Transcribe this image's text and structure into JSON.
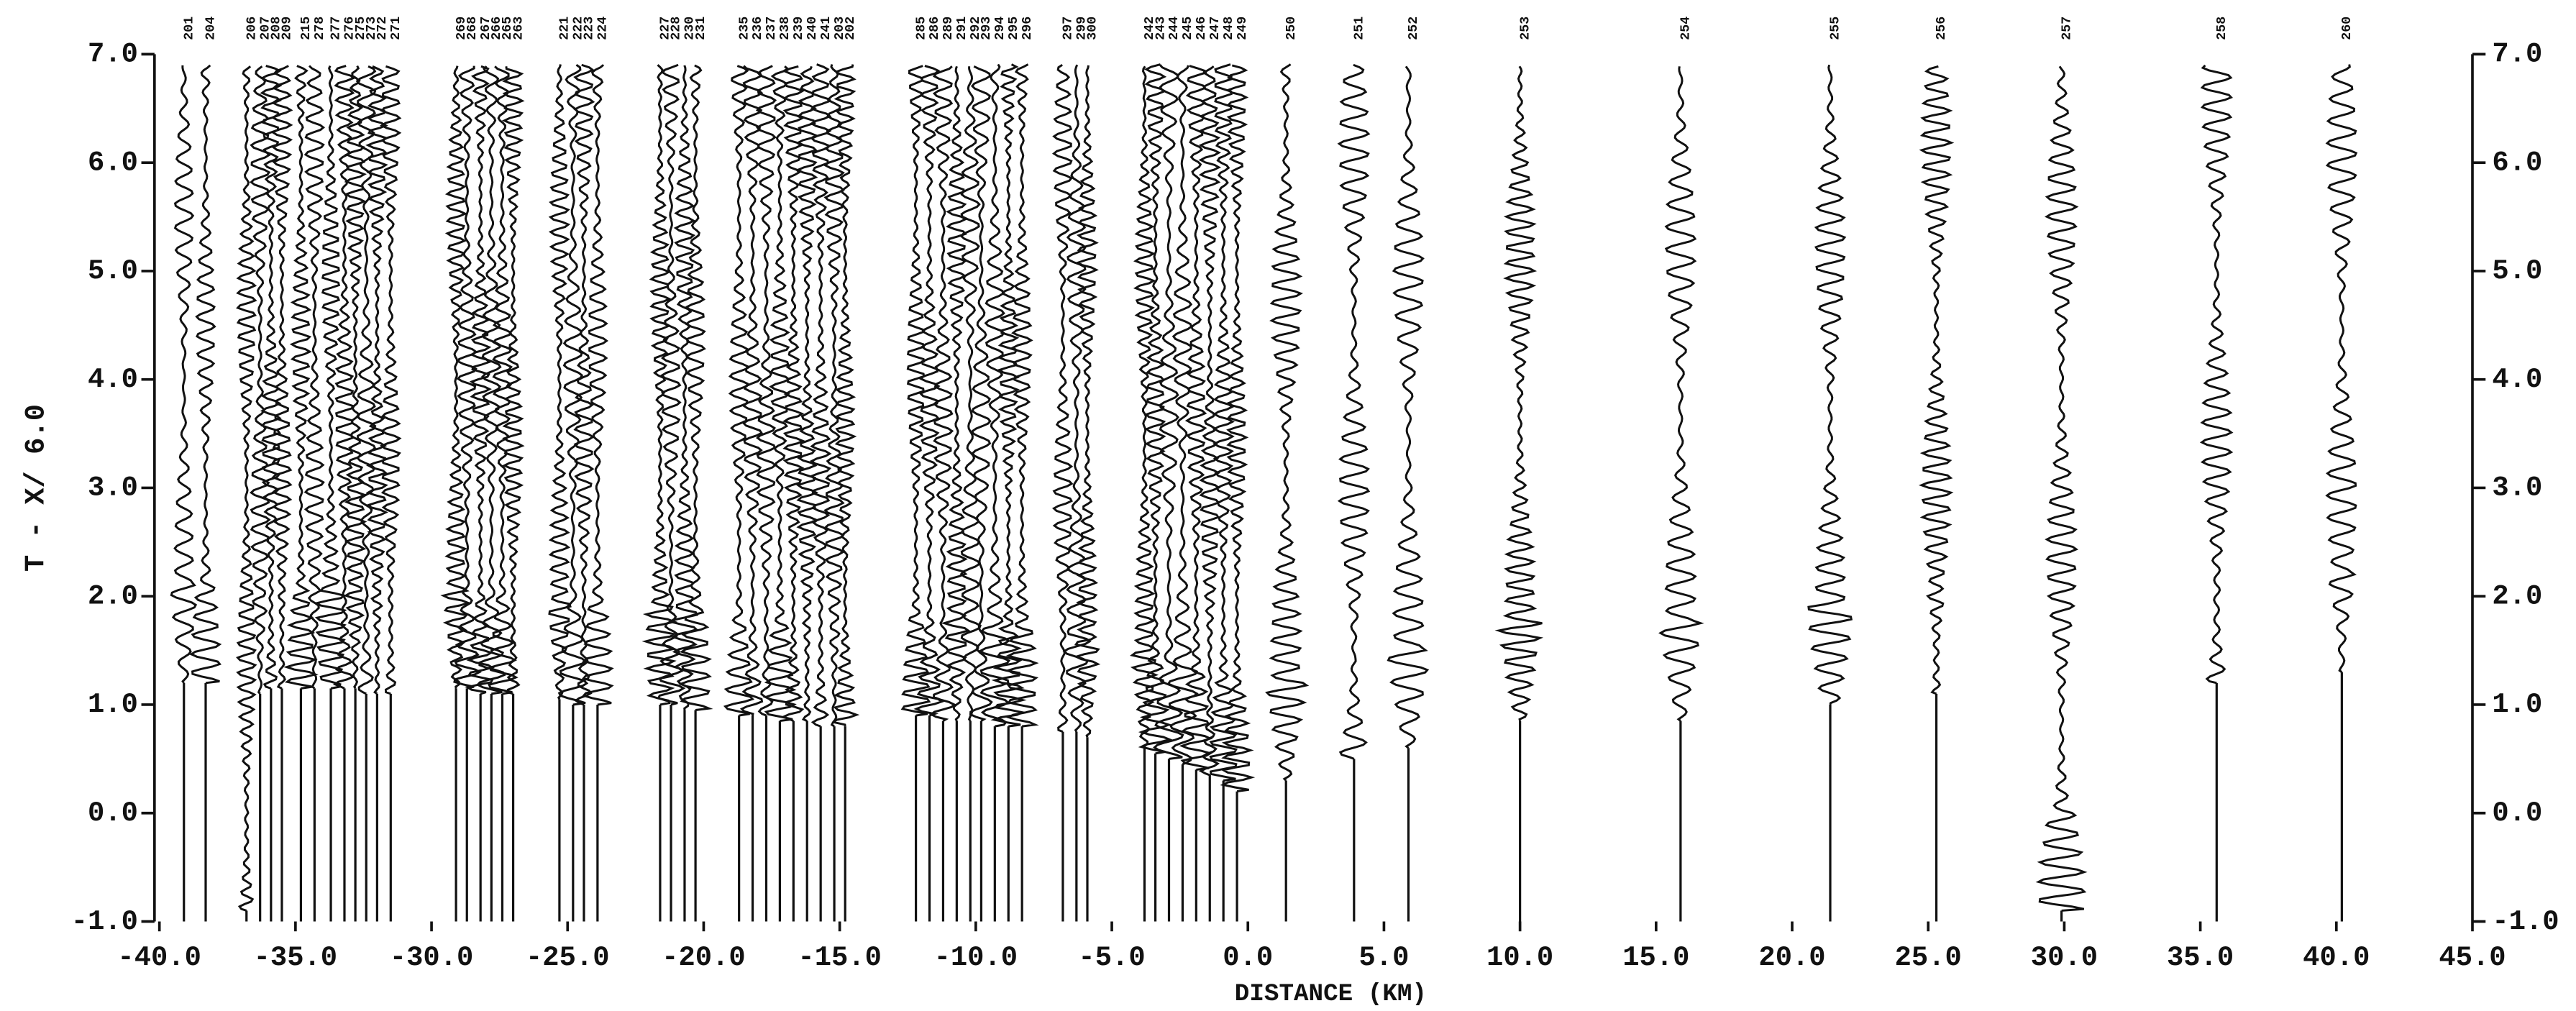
{
  "chart_data": {
    "type": "record-section",
    "xlabel": "DISTANCE (KM)",
    "ylabel": "T - X/ 6.0",
    "xlim": [
      -40,
      45
    ],
    "ylim": [
      -1,
      7
    ],
    "y2lim": [
      -1,
      7
    ],
    "xticks": [
      {
        "value": -40,
        "label": "-40.0"
      },
      {
        "value": -35,
        "label": "-35.0"
      },
      {
        "value": -30,
        "label": "-30.0"
      },
      {
        "value": -25,
        "label": "-25.0"
      },
      {
        "value": -20,
        "label": "-20.0"
      },
      {
        "value": -15,
        "label": "-15.0"
      },
      {
        "value": -10,
        "label": "-10.0"
      },
      {
        "value": -5,
        "label": "-5.0"
      },
      {
        "value": 0,
        "label": "0.0"
      },
      {
        "value": 5,
        "label": "5.0"
      },
      {
        "value": 10,
        "label": "10.0"
      },
      {
        "value": 15,
        "label": "15.0"
      },
      {
        "value": 20,
        "label": "20.0"
      },
      {
        "value": 25,
        "label": "25.0"
      },
      {
        "value": 30,
        "label": "30.0"
      },
      {
        "value": 35,
        "label": "35.0"
      },
      {
        "value": 40,
        "label": "40.0"
      },
      {
        "value": 45,
        "label": "45.0"
      }
    ],
    "yticks": [
      {
        "value": -1,
        "label": "-1.0"
      },
      {
        "value": 0,
        "label": "0.0"
      },
      {
        "value": 1,
        "label": "1.0"
      },
      {
        "value": 2,
        "label": "2.0"
      },
      {
        "value": 3,
        "label": "3.0"
      },
      {
        "value": 4,
        "label": "4.0"
      },
      {
        "value": 5,
        "label": "5.0"
      },
      {
        "value": 6,
        "label": "6.0"
      },
      {
        "value": 7,
        "label": "7.0"
      }
    ],
    "y2ticks": [
      {
        "value": -1,
        "label": "-1.0"
      },
      {
        "value": 0,
        "label": "0.0"
      },
      {
        "value": 1,
        "label": "1.0"
      },
      {
        "value": 2,
        "label": "2.0"
      },
      {
        "value": 3,
        "label": "3.0"
      },
      {
        "value": 4,
        "label": "4.0"
      },
      {
        "value": 5,
        "label": "5.0"
      },
      {
        "value": 6,
        "label": "6.0"
      },
      {
        "value": 7,
        "label": "7.0"
      }
    ],
    "traces": [
      {
        "name": "201",
        "x": -39.1,
        "onset": 1.2
      },
      {
        "name": "204",
        "x": -38.3,
        "onset": 1.2
      },
      {
        "name": "206",
        "x": -36.8,
        "onset": -0.9
      },
      {
        "name": "207",
        "x": -36.3,
        "onset": 1.1
      },
      {
        "name": "208",
        "x": -35.9,
        "onset": 1.15
      },
      {
        "name": "209",
        "x": -35.5,
        "onset": 1.15
      },
      {
        "name": "215",
        "x": -34.8,
        "onset": 1.15
      },
      {
        "name": "278",
        "x": -34.3,
        "onset": 1.15
      },
      {
        "name": "277",
        "x": -33.7,
        "onset": 1.15
      },
      {
        "name": "276",
        "x": -33.2,
        "onset": 1.15
      },
      {
        "name": "275",
        "x": -32.8,
        "onset": 1.15
      },
      {
        "name": "273",
        "x": -32.4,
        "onset": 1.1
      },
      {
        "name": "272",
        "x": -32.0,
        "onset": 1.1
      },
      {
        "name": "271",
        "x": -31.5,
        "onset": 1.1
      },
      {
        "name": "269",
        "x": -29.1,
        "onset": 1.15
      },
      {
        "name": "268",
        "x": -28.7,
        "onset": 1.15
      },
      {
        "name": "267",
        "x": -28.2,
        "onset": 1.1
      },
      {
        "name": "266",
        "x": -27.8,
        "onset": 1.1
      },
      {
        "name": "265",
        "x": -27.4,
        "onset": 1.1
      },
      {
        "name": "263",
        "x": -27.0,
        "onset": 1.1
      },
      {
        "name": "221",
        "x": -25.3,
        "onset": 1.05
      },
      {
        "name": "222",
        "x": -24.8,
        "onset": 1.0
      },
      {
        "name": "223",
        "x": -24.4,
        "onset": 1.0
      },
      {
        "name": "224",
        "x": -23.9,
        "onset": 1.0
      },
      {
        "name": "227",
        "x": -21.6,
        "onset": 1.0
      },
      {
        "name": "228",
        "x": -21.2,
        "onset": 1.0
      },
      {
        "name": "230",
        "x": -20.7,
        "onset": 0.95
      },
      {
        "name": "231",
        "x": -20.3,
        "onset": 0.95
      },
      {
        "name": "235",
        "x": -18.7,
        "onset": 0.9
      },
      {
        "name": "236",
        "x": -18.2,
        "onset": 0.9
      },
      {
        "name": "237",
        "x": -17.7,
        "onset": 0.9
      },
      {
        "name": "238",
        "x": -17.2,
        "onset": 0.85
      },
      {
        "name": "239",
        "x": -16.7,
        "onset": 0.85
      },
      {
        "name": "240",
        "x": -16.2,
        "onset": 0.85
      },
      {
        "name": "241",
        "x": -15.7,
        "onset": 0.8
      },
      {
        "name": "203",
        "x": -15.2,
        "onset": 0.8
      },
      {
        "name": "202",
        "x": -14.8,
        "onset": 0.8
      },
      {
        "name": "285",
        "x": -12.2,
        "onset": 0.9
      },
      {
        "name": "286",
        "x": -11.7,
        "onset": 0.9
      },
      {
        "name": "289",
        "x": -11.2,
        "onset": 0.85
      },
      {
        "name": "291",
        "x": -10.7,
        "onset": 0.85
      },
      {
        "name": "292",
        "x": -10.2,
        "onset": 0.85
      },
      {
        "name": "293",
        "x": -9.8,
        "onset": 0.85
      },
      {
        "name": "294",
        "x": -9.3,
        "onset": 0.8
      },
      {
        "name": "295",
        "x": -8.8,
        "onset": 0.8
      },
      {
        "name": "296",
        "x": -8.3,
        "onset": 0.8
      },
      {
        "name": "297",
        "x": -6.8,
        "onset": 0.75
      },
      {
        "name": "299",
        "x": -6.3,
        "onset": 0.75
      },
      {
        "name": "300",
        "x": -5.9,
        "onset": 0.7
      },
      {
        "name": "242",
        "x": -3.8,
        "onset": 0.6
      },
      {
        "name": "243",
        "x": -3.4,
        "onset": 0.55
      },
      {
        "name": "244",
        "x": -2.9,
        "onset": 0.5
      },
      {
        "name": "245",
        "x": -2.4,
        "onset": 0.45
      },
      {
        "name": "246",
        "x": -1.9,
        "onset": 0.4
      },
      {
        "name": "247",
        "x": -1.4,
        "onset": 0.35
      },
      {
        "name": "248",
        "x": -0.9,
        "onset": 0.3
      },
      {
        "name": "249",
        "x": -0.4,
        "onset": 0.2
      },
      {
        "name": "250",
        "x": 1.4,
        "onset": 0.3
      },
      {
        "name": "251",
        "x": 3.9,
        "onset": 0.5
      },
      {
        "name": "252",
        "x": 5.9,
        "onset": 0.6
      },
      {
        "name": "253",
        "x": 10.0,
        "onset": 0.85
      },
      {
        "name": "254",
        "x": 15.9,
        "onset": 0.85
      },
      {
        "name": "255",
        "x": 21.4,
        "onset": 1.0
      },
      {
        "name": "256",
        "x": 25.3,
        "onset": 1.1
      },
      {
        "name": "257",
        "x": 29.9,
        "onset": -0.9
      },
      {
        "name": "258",
        "x": 35.6,
        "onset": 1.2
      },
      {
        "name": "260",
        "x": 40.2,
        "onset": 1.3
      }
    ]
  }
}
